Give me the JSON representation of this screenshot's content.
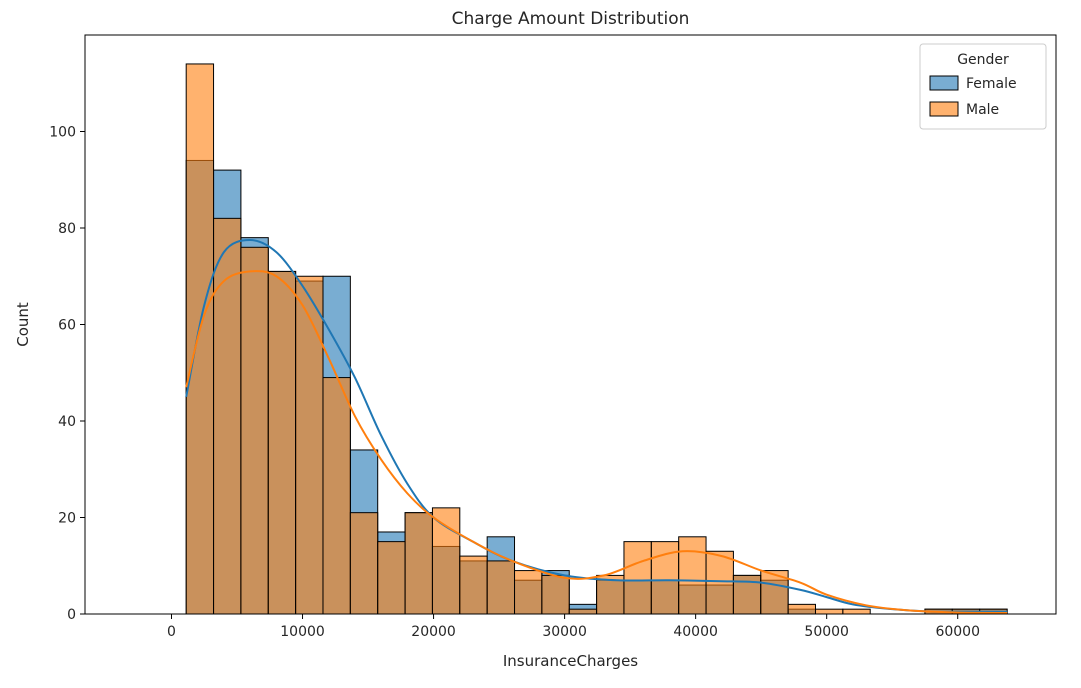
{
  "chart_data": {
    "type": "histogram",
    "title": "Charge Amount Distribution",
    "xlabel": "InsuranceCharges",
    "ylabel": "Count",
    "xlim": [
      -6600,
      67500
    ],
    "ylim": [
      0,
      120
    ],
    "x_ticks": [
      0,
      10000,
      20000,
      30000,
      40000,
      50000,
      60000
    ],
    "y_ticks": [
      0,
      20,
      40,
      60,
      80,
      100
    ],
    "x_tick_labels": [
      "0",
      "10000",
      "20000",
      "30000",
      "40000",
      "50000",
      "60000"
    ],
    "y_tick_labels": [
      "0",
      "20",
      "40",
      "60",
      "80",
      "100"
    ],
    "bin_edges": [
      1122,
      3210,
      5298,
      7386,
      9474,
      11562,
      13650,
      15738,
      17826,
      19914,
      22002,
      24090,
      26178,
      28266,
      30354,
      32442,
      34530,
      36618,
      38706,
      40794,
      42882,
      44970,
      47058,
      49146,
      51234,
      53322,
      55410,
      57498,
      59586,
      61674,
      63770
    ],
    "series": [
      {
        "name": "Female",
        "color": "#1f77b4",
        "counts": [
          94,
          92,
          78,
          71,
          69,
          70,
          34,
          17,
          21,
          14,
          11,
          16,
          7,
          9,
          2,
          7,
          7,
          7,
          6,
          6,
          8,
          7,
          1,
          0,
          0,
          0,
          0,
          1,
          1,
          1
        ],
        "kde_x": [
          1122,
          2500,
          4000,
          6000,
          8000,
          10000,
          12000,
          14000,
          16000,
          18000,
          20000,
          23000,
          26000,
          30000,
          34000,
          38000,
          42000,
          45000,
          48000,
          50000,
          52000,
          55000,
          58000,
          61000,
          63770
        ],
        "kde_y": [
          45,
          64,
          75,
          77.5,
          75,
          68,
          59,
          49,
          37,
          27,
          20,
          15,
          11,
          8,
          7,
          7,
          6.8,
          6.5,
          5,
          3.5,
          2,
          1,
          0.5,
          0.5,
          0.5
        ]
      },
      {
        "name": "Male",
        "color": "#ff7f0e",
        "counts": [
          114,
          82,
          76,
          71,
          70,
          49,
          21,
          15,
          21,
          22,
          12,
          11,
          9,
          8,
          1,
          8,
          15,
          15,
          16,
          13,
          8,
          9,
          2,
          1,
          1,
          0,
          0,
          1,
          1,
          1
        ],
        "kde_x": [
          1122,
          2500,
          4000,
          6000,
          8000,
          10000,
          12000,
          14000,
          16000,
          18000,
          20000,
          23000,
          26000,
          30000,
          33000,
          36000,
          39000,
          42000,
          45000,
          48000,
          50000,
          53000,
          56000,
          60000,
          63770
        ],
        "kde_y": [
          47,
          62,
          69,
          71,
          70,
          64,
          53,
          41,
          32,
          25,
          20,
          15,
          11,
          7.5,
          8,
          11,
          13,
          12,
          9,
          6.5,
          4,
          1.8,
          0.8,
          0.3,
          0.2
        ]
      }
    ],
    "legend": {
      "title": "Gender",
      "position": "top-right"
    },
    "grid": false
  }
}
